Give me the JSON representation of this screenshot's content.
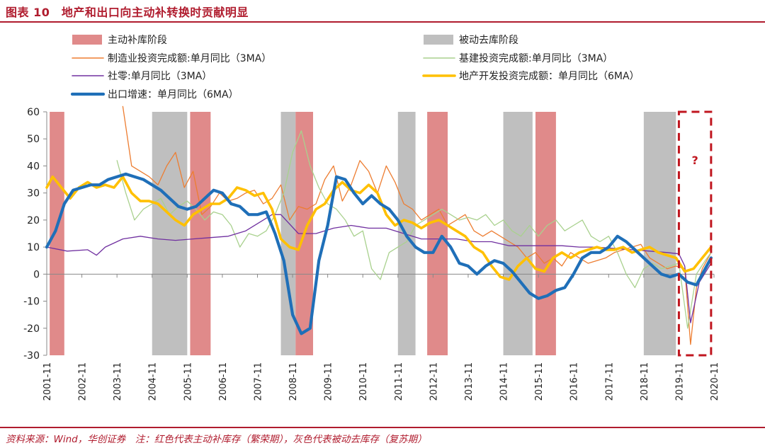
{
  "figure": {
    "title": "图表 10　地产和出口向主动补转换时贡献明显",
    "source_note": "资料来源：Wind，华创证券　注：红色代表主动补库存（繁荣期），灰色代表被动去库存（复苏期）"
  },
  "chart_data": {
    "type": "line",
    "title": "",
    "xlabel": "",
    "ylabel": "",
    "ylim": [
      -30,
      60
    ],
    "yticks": [
      -30,
      -20,
      -10,
      0,
      10,
      20,
      30,
      40,
      50,
      60
    ],
    "xlim": [
      "2001-11",
      "2020-11"
    ],
    "xticks": [
      "2001-11",
      "2002-11",
      "2003-11",
      "2004-11",
      "2005-11",
      "2006-11",
      "2007-11",
      "2008-11",
      "2009-11",
      "2010-11",
      "2011-11",
      "2012-11",
      "2013-11",
      "2014-11",
      "2015-11",
      "2016-11",
      "2017-11",
      "2018-11",
      "2019-11",
      "2020-11"
    ],
    "grid": false,
    "legend_position": "top",
    "shaded_periods": [
      {
        "name": "主动补库阶段",
        "color": "#e08a8a",
        "ranges": [
          [
            "2001-12",
            "2002-05"
          ],
          [
            "2008-12",
            "2009-06"
          ],
          [
            "2005-12",
            "2006-07"
          ],
          [
            "2012-09",
            "2013-04"
          ],
          [
            "2015-10",
            "2016-05"
          ]
        ]
      },
      {
        "name": "被动去库阶段",
        "color": "#bfbfbf",
        "ranges": [
          [
            "2004-11",
            "2005-11"
          ],
          [
            "2008-07",
            "2008-12"
          ],
          [
            "2011-11",
            "2012-05"
          ],
          [
            "2014-11",
            "2015-09"
          ],
          [
            "2018-11",
            "2019-10"
          ]
        ]
      }
    ],
    "annotation": {
      "text": "?",
      "range": [
        "2019-11",
        "2020-10"
      ],
      "color": "#c0161f"
    },
    "series": [
      {
        "name": "制造业投资完成额:单月同比（3MA）",
        "color": "#ed7d31",
        "width": 1.3,
        "x": [
          "2004-01",
          "2004-04",
          "2004-07",
          "2004-10",
          "2005-01",
          "2005-04",
          "2005-07",
          "2005-10",
          "2006-01",
          "2006-04",
          "2006-07",
          "2006-10",
          "2007-01",
          "2007-04",
          "2007-07",
          "2007-10",
          "2008-01",
          "2008-04",
          "2008-07",
          "2008-10",
          "2009-01",
          "2009-04",
          "2009-07",
          "2009-10",
          "2010-01",
          "2010-04",
          "2010-07",
          "2010-10",
          "2011-01",
          "2011-04",
          "2011-07",
          "2011-10",
          "2012-01",
          "2012-04",
          "2012-07",
          "2012-10",
          "2013-01",
          "2013-04",
          "2013-07",
          "2013-10",
          "2014-01",
          "2014-04",
          "2014-07",
          "2014-10",
          "2015-01",
          "2015-04",
          "2015-07",
          "2015-10",
          "2016-01",
          "2016-04",
          "2016-07",
          "2016-10",
          "2017-01",
          "2017-04",
          "2017-07",
          "2017-10",
          "2018-01",
          "2018-04",
          "2018-07",
          "2018-10",
          "2019-01",
          "2019-04",
          "2019-07",
          "2019-10",
          "2020-01",
          "2020-03",
          "2020-05",
          "2020-07",
          "2020-10"
        ],
        "y": [
          62,
          40,
          38,
          36,
          33,
          40,
          45,
          32,
          38,
          22,
          25,
          30,
          27,
          28,
          30,
          31,
          26,
          28,
          33,
          20,
          25,
          24,
          26,
          35,
          40,
          27,
          33,
          42,
          38,
          30,
          40,
          34,
          26,
          24,
          20,
          22,
          24,
          18,
          20,
          22,
          16,
          14,
          16,
          14,
          12,
          10,
          6,
          8,
          4,
          6,
          3,
          8,
          6,
          4,
          5,
          6,
          8,
          9,
          10,
          11,
          6,
          4,
          2,
          3,
          2,
          -26,
          -5,
          2,
          8
        ]
      },
      {
        "name": "基建投资完成额:单月同比（3MA）",
        "color": "#a9d18e",
        "width": 1.3,
        "x": [
          "2003-11",
          "2004-02",
          "2004-05",
          "2004-08",
          "2004-11",
          "2005-02",
          "2005-05",
          "2005-08",
          "2005-11",
          "2006-02",
          "2006-05",
          "2006-08",
          "2006-11",
          "2007-02",
          "2007-05",
          "2007-08",
          "2007-11",
          "2008-02",
          "2008-05",
          "2008-08",
          "2008-11",
          "2009-02",
          "2009-05",
          "2009-08",
          "2009-11",
          "2010-02",
          "2010-05",
          "2010-08",
          "2010-11",
          "2011-02",
          "2011-05",
          "2011-08",
          "2011-11",
          "2012-02",
          "2012-05",
          "2012-08",
          "2012-11",
          "2013-02",
          "2013-05",
          "2013-08",
          "2013-11",
          "2014-02",
          "2014-05",
          "2014-08",
          "2014-11",
          "2015-02",
          "2015-05",
          "2015-08",
          "2015-11",
          "2016-02",
          "2016-05",
          "2016-08",
          "2016-11",
          "2017-02",
          "2017-05",
          "2017-08",
          "2017-11",
          "2018-02",
          "2018-05",
          "2018-08",
          "2018-11",
          "2019-02",
          "2019-05",
          "2019-08",
          "2019-11",
          "2020-02",
          "2020-05",
          "2020-08",
          "2020-10"
        ],
        "y": [
          42,
          30,
          20,
          24,
          26,
          28,
          22,
          25,
          27,
          24,
          20,
          23,
          22,
          18,
          10,
          15,
          14,
          16,
          22,
          30,
          45,
          53,
          40,
          32,
          26,
          24,
          20,
          14,
          16,
          2,
          -2,
          8,
          10,
          12,
          18,
          20,
          22,
          24,
          22,
          20,
          21,
          20,
          22,
          18,
          20,
          16,
          14,
          18,
          14,
          18,
          20,
          16,
          18,
          20,
          14,
          12,
          14,
          8,
          0,
          -5,
          2,
          4,
          2,
          3,
          4,
          -20,
          0,
          5,
          8
        ]
      },
      {
        "name": "社零:单月同比（3MA）",
        "color": "#7030a0",
        "width": 1.3,
        "x": [
          "2001-11",
          "2002-06",
          "2003-01",
          "2003-04",
          "2003-07",
          "2004-01",
          "2004-07",
          "2005-01",
          "2005-07",
          "2006-01",
          "2006-07",
          "2007-01",
          "2007-07",
          "2008-01",
          "2008-04",
          "2008-07",
          "2009-01",
          "2009-07",
          "2010-01",
          "2010-07",
          "2011-01",
          "2011-07",
          "2012-01",
          "2012-07",
          "2013-01",
          "2013-07",
          "2014-01",
          "2014-07",
          "2015-01",
          "2015-07",
          "2016-01",
          "2016-07",
          "2017-01",
          "2017-07",
          "2018-01",
          "2018-07",
          "2019-01",
          "2019-07",
          "2019-11",
          "2020-01",
          "2020-03",
          "2020-06",
          "2020-10"
        ],
        "y": [
          10,
          8.5,
          9,
          7,
          10,
          13,
          14,
          13,
          12.5,
          13,
          13.5,
          14,
          16,
          20,
          22,
          22,
          15,
          15,
          17,
          18,
          17,
          17,
          15,
          13,
          13,
          13,
          12,
          12,
          10.5,
          10.5,
          10.5,
          10.5,
          10,
          10,
          9.5,
          9,
          8.5,
          8,
          7.5,
          3,
          -18,
          -3,
          4
        ]
      },
      {
        "name": "地产开发投资完成额：单月同比（6MA）",
        "color": "#ffc000",
        "width": 3.6,
        "x": [
          "2001-11",
          "2002-01",
          "2002-04",
          "2002-07",
          "2002-10",
          "2003-01",
          "2003-04",
          "2003-07",
          "2003-10",
          "2004-01",
          "2004-04",
          "2004-07",
          "2004-10",
          "2005-01",
          "2005-04",
          "2005-07",
          "2005-10",
          "2006-01",
          "2006-04",
          "2006-07",
          "2006-10",
          "2007-01",
          "2007-04",
          "2007-07",
          "2007-10",
          "2008-01",
          "2008-04",
          "2008-07",
          "2008-10",
          "2009-01",
          "2009-04",
          "2009-07",
          "2009-10",
          "2010-01",
          "2010-04",
          "2010-07",
          "2010-10",
          "2011-01",
          "2011-04",
          "2011-07",
          "2011-10",
          "2012-01",
          "2012-04",
          "2012-07",
          "2012-10",
          "2013-01",
          "2013-04",
          "2013-07",
          "2013-10",
          "2014-01",
          "2014-04",
          "2014-07",
          "2014-10",
          "2015-01",
          "2015-04",
          "2015-07",
          "2015-10",
          "2016-01",
          "2016-04",
          "2016-07",
          "2016-10",
          "2017-01",
          "2017-04",
          "2017-07",
          "2017-10",
          "2018-01",
          "2018-04",
          "2018-07",
          "2018-10",
          "2019-01",
          "2019-04",
          "2019-07",
          "2019-10",
          "2020-01",
          "2020-04",
          "2020-07",
          "2020-10"
        ],
        "y": [
          32,
          36,
          32,
          28,
          32,
          34,
          32,
          33,
          32,
          36,
          30,
          27,
          27,
          26,
          23,
          20,
          18,
          22,
          24,
          26,
          26,
          28,
          32,
          31,
          29,
          30,
          24,
          13,
          10,
          9,
          18,
          24,
          26,
          31,
          34,
          31,
          30,
          33,
          30,
          22,
          18,
          20,
          19,
          17,
          19,
          20,
          18,
          16,
          14,
          10,
          8,
          3,
          -1,
          -2,
          3,
          6,
          2,
          1,
          6,
          8,
          6,
          8,
          9,
          10,
          9,
          9,
          10,
          8,
          9,
          10,
          8,
          7,
          6,
          1,
          2,
          6,
          10
        ]
      },
      {
        "name": "出口增速：单月同比（6MA）",
        "color": "#1f6fb8",
        "width": 4.2,
        "x": [
          "2001-11",
          "2002-02",
          "2002-05",
          "2002-08",
          "2002-11",
          "2003-02",
          "2003-05",
          "2003-08",
          "2003-11",
          "2004-02",
          "2004-05",
          "2004-08",
          "2004-11",
          "2005-02",
          "2005-05",
          "2005-08",
          "2005-11",
          "2006-02",
          "2006-05",
          "2006-08",
          "2006-11",
          "2007-02",
          "2007-05",
          "2007-08",
          "2007-11",
          "2008-02",
          "2008-05",
          "2008-08",
          "2008-11",
          "2009-02",
          "2009-05",
          "2009-08",
          "2009-11",
          "2010-02",
          "2010-05",
          "2010-08",
          "2010-11",
          "2011-02",
          "2011-05",
          "2011-08",
          "2011-11",
          "2012-02",
          "2012-05",
          "2012-08",
          "2012-11",
          "2013-02",
          "2013-05",
          "2013-08",
          "2013-11",
          "2014-02",
          "2014-05",
          "2014-08",
          "2014-11",
          "2015-02",
          "2015-05",
          "2015-08",
          "2015-11",
          "2016-02",
          "2016-05",
          "2016-08",
          "2016-11",
          "2017-02",
          "2017-05",
          "2017-08",
          "2017-11",
          "2018-02",
          "2018-05",
          "2018-08",
          "2018-11",
          "2019-02",
          "2019-05",
          "2019-08",
          "2019-11",
          "2020-02",
          "2020-05",
          "2020-08",
          "2020-10"
        ],
        "y": [
          10,
          16,
          26,
          31,
          32,
          33,
          33,
          35,
          36,
          37,
          36,
          35,
          33,
          31,
          28,
          25,
          24,
          25,
          28,
          31,
          30,
          26,
          25,
          22,
          22,
          23,
          15,
          5,
          -15,
          -22,
          -20,
          5,
          18,
          36,
          35,
          30,
          26,
          29,
          26,
          24,
          20,
          14,
          10,
          8,
          8,
          14,
          10,
          4,
          3,
          0,
          3,
          5,
          4,
          1,
          -3,
          -7,
          -9,
          -8,
          -6,
          -5,
          0,
          6,
          8,
          8,
          10,
          14,
          12,
          9,
          6,
          3,
          0,
          -1,
          0,
          -3,
          -4,
          2,
          6
        ]
      }
    ]
  }
}
